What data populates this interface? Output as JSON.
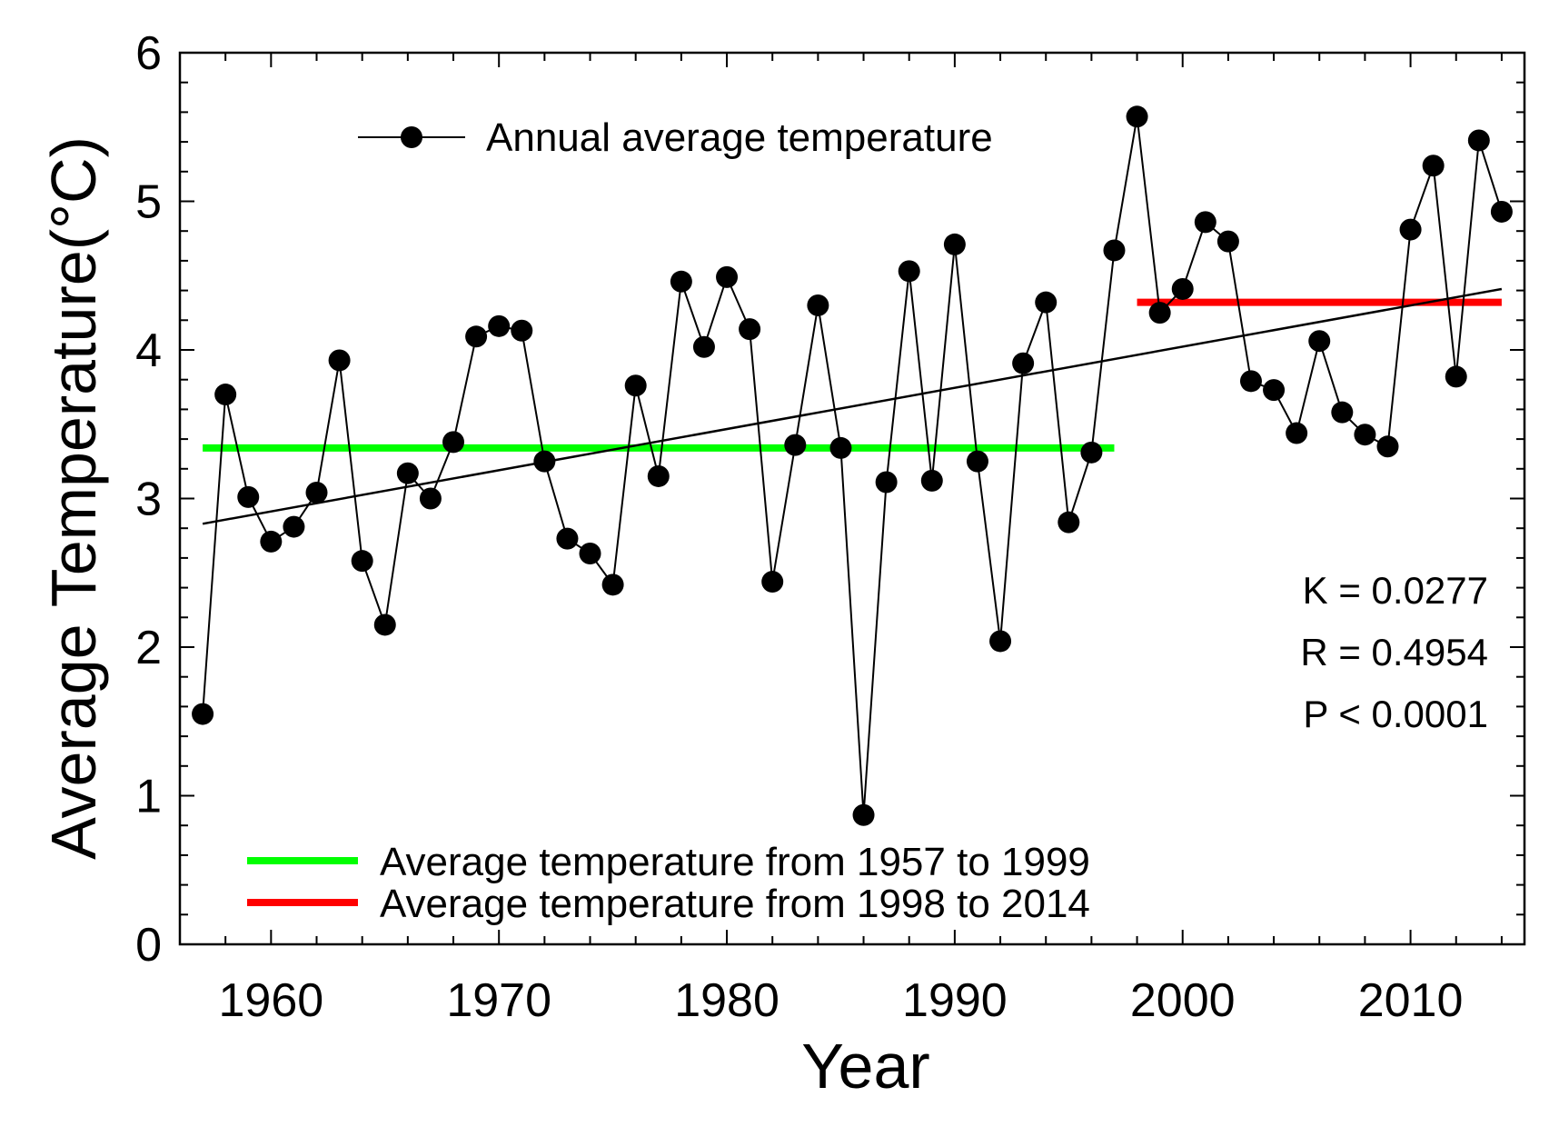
{
  "chart_data": {
    "type": "line",
    "title": "",
    "xlabel": "Year",
    "ylabel": "Average Temperature(°C)",
    "xlim": [
      1956,
      2015
    ],
    "ylim": [
      0,
      6
    ],
    "xticks": [
      1960,
      1970,
      1980,
      1990,
      2000,
      2010
    ],
    "yticks": [
      0,
      1,
      2,
      3,
      4,
      5,
      6
    ],
    "grid": false,
    "series": [
      {
        "name": "Annual average temperature",
        "color": "#000000",
        "marker": "circle",
        "x": [
          1957,
          1958,
          1959,
          1960,
          1961,
          1962,
          1963,
          1964,
          1965,
          1966,
          1967,
          1968,
          1969,
          1970,
          1971,
          1972,
          1973,
          1974,
          1975,
          1976,
          1977,
          1978,
          1979,
          1980,
          1981,
          1982,
          1983,
          1984,
          1985,
          1986,
          1987,
          1988,
          1989,
          1990,
          1991,
          1992,
          1993,
          1994,
          1995,
          1996,
          1997,
          1998,
          1999,
          2000,
          2001,
          2002,
          2003,
          2004,
          2005,
          2006,
          2007,
          2008,
          2009,
          2010,
          2011,
          2012,
          2013,
          2014
        ],
        "y": [
          1.55,
          3.7,
          3.01,
          2.71,
          2.81,
          3.04,
          3.93,
          2.58,
          2.15,
          3.17,
          3.0,
          3.38,
          4.09,
          4.16,
          4.13,
          3.25,
          2.73,
          2.63,
          2.42,
          3.76,
          3.15,
          4.46,
          4.02,
          4.49,
          4.14,
          2.44,
          3.36,
          4.3,
          3.34,
          0.87,
          3.11,
          4.53,
          3.12,
          4.71,
          3.25,
          2.04,
          3.91,
          4.32,
          2.84,
          3.31,
          4.67,
          5.57,
          4.25,
          4.41,
          4.86,
          4.73,
          3.79,
          3.73,
          3.44,
          4.06,
          3.58,
          3.43,
          3.35,
          4.81,
          5.24,
          3.82,
          5.41,
          4.93
        ]
      }
    ],
    "trend_line": {
      "x": [
        1957,
        2014
      ],
      "y": [
        2.83,
        4.41
      ],
      "color": "#000000"
    },
    "averages": [
      {
        "name": "Average temperature from 1957 to 1999",
        "x": [
          1957,
          1997
        ],
        "value": 3.34,
        "color": "#00ff00"
      },
      {
        "name": "Average temperature from 1998 to 2014",
        "x": [
          1998,
          2014
        ],
        "value": 4.32,
        "color": "#ff0000"
      }
    ],
    "annotations": [
      "K = 0.0277",
      "R = 0.4954",
      "P < 0.0001"
    ],
    "legend": {
      "placement": "top-left"
    },
    "averages_legend": {
      "placement": "bottom-left"
    }
  }
}
